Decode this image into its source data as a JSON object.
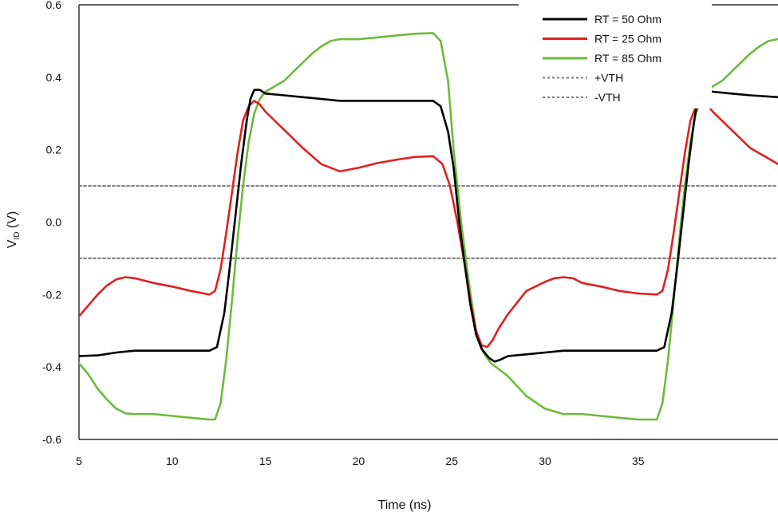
{
  "chart_data": {
    "type": "line",
    "title": "",
    "xlabel": "Time (ns)",
    "ylabel": "V",
    "ylabel_sub": "ID",
    "ylabel_unit": " (V)",
    "xlim": [
      5,
      42.5
    ],
    "ylim": [
      -0.6,
      0.6
    ],
    "x_ticks": [
      5,
      10,
      15,
      20,
      25,
      30,
      35
    ],
    "x_tick_labels": [
      "5",
      "10",
      "15",
      "20",
      "25",
      "30",
      "35"
    ],
    "y_ticks": [
      0.6,
      0.4,
      0.2,
      0.0,
      -0.2,
      -0.4,
      -0.6
    ],
    "y_tick_labels": [
      "0.6",
      "0.4",
      "0.2",
      "0.0",
      "-0.2",
      "-0.4",
      "-0.6"
    ],
    "grid": false,
    "legend_position": "top-right",
    "series": [
      {
        "name": "RT = 50 Ohm",
        "color": "#000000",
        "style": "solid",
        "x": [
          5,
          6,
          7,
          8,
          9,
          10,
          11,
          12,
          12.4,
          12.8,
          13.1,
          13.4,
          13.7,
          14,
          14.2,
          14.4,
          14.7,
          15,
          16,
          17,
          18,
          19,
          20,
          21,
          22,
          23,
          24,
          24.4,
          24.8,
          25.1,
          25.4,
          25.7,
          26,
          26.3,
          26.6,
          27,
          27.3,
          27.6,
          28,
          29,
          30,
          31,
          32,
          33,
          34,
          35,
          36,
          36.4,
          36.8,
          37.1,
          37.4,
          37.7,
          38,
          38.2,
          38.4,
          38.7,
          39,
          40,
          41,
          42.5
        ],
        "y": [
          -0.37,
          -0.368,
          -0.36,
          -0.355,
          -0.355,
          -0.355,
          -0.355,
          -0.355,
          -0.345,
          -0.25,
          -0.12,
          0.02,
          0.16,
          0.28,
          0.34,
          0.365,
          0.365,
          0.355,
          0.35,
          0.345,
          0.34,
          0.335,
          0.335,
          0.335,
          0.335,
          0.335,
          0.335,
          0.32,
          0.25,
          0.15,
          0.0,
          -0.12,
          -0.23,
          -0.31,
          -0.35,
          -0.375,
          -0.385,
          -0.38,
          -0.37,
          -0.365,
          -0.36,
          -0.355,
          -0.355,
          -0.355,
          -0.355,
          -0.355,
          -0.355,
          -0.345,
          -0.25,
          -0.12,
          0.02,
          0.16,
          0.28,
          0.34,
          0.365,
          0.365,
          0.36,
          0.355,
          0.35,
          0.345
        ]
      },
      {
        "name": "RT = 25 Ohm",
        "color": "#e02020",
        "style": "solid",
        "x": [
          5,
          5.5,
          6,
          6.5,
          7,
          7.5,
          8,
          9,
          10,
          11,
          12,
          12.3,
          12.6,
          12.9,
          13.2,
          13.5,
          13.8,
          14.1,
          14.4,
          14.7,
          15,
          16,
          17,
          18,
          19,
          20,
          21,
          22,
          23,
          24,
          24.5,
          24.9,
          25.3,
          25.7,
          26,
          26.3,
          26.6,
          26.9,
          27.2,
          27.5,
          28,
          29,
          30,
          30.5,
          31,
          31.5,
          32,
          33,
          34,
          35,
          36,
          36.3,
          36.6,
          36.9,
          37.2,
          37.5,
          37.8,
          38.1,
          38.4,
          38.7,
          39,
          40,
          41,
          42.5
        ],
        "y": [
          -0.26,
          -0.23,
          -0.2,
          -0.175,
          -0.158,
          -0.152,
          -0.155,
          -0.168,
          -0.178,
          -0.19,
          -0.2,
          -0.19,
          -0.13,
          -0.03,
          0.08,
          0.19,
          0.28,
          0.32,
          0.335,
          0.325,
          0.305,
          0.255,
          0.205,
          0.16,
          0.14,
          0.15,
          0.163,
          0.172,
          0.18,
          0.182,
          0.16,
          0.1,
          0.0,
          -0.12,
          -0.22,
          -0.3,
          -0.34,
          -0.345,
          -0.325,
          -0.295,
          -0.255,
          -0.19,
          -0.165,
          -0.155,
          -0.152,
          -0.155,
          -0.168,
          -0.178,
          -0.19,
          -0.197,
          -0.2,
          -0.19,
          -0.13,
          -0.03,
          0.08,
          0.19,
          0.28,
          0.32,
          0.335,
          0.325,
          0.305,
          0.255,
          0.205,
          0.16
        ]
      },
      {
        "name": "RT = 85 Ohm",
        "color": "#6cbb3c",
        "style": "solid",
        "x": [
          5,
          5.5,
          6,
          6.5,
          7,
          7.5,
          8,
          9,
          10,
          11,
          12,
          12.3,
          12.6,
          12.9,
          13.2,
          13.5,
          13.8,
          14.1,
          14.4,
          14.7,
          15,
          15.5,
          16,
          16.5,
          17,
          17.5,
          18,
          18.5,
          19,
          20,
          21,
          22,
          23,
          24,
          24.4,
          24.8,
          25.1,
          25.5,
          25.9,
          26.3,
          26.7,
          27.1,
          27.5,
          28,
          29,
          30,
          31,
          32,
          33,
          34,
          35,
          36,
          36.3,
          36.6,
          36.9,
          37.2,
          37.5,
          37.8,
          38.1,
          38.4,
          38.7,
          39,
          39.5,
          40,
          40.5,
          41,
          41.5,
          42,
          42.5
        ],
        "y": [
          -0.39,
          -0.42,
          -0.46,
          -0.49,
          -0.515,
          -0.528,
          -0.53,
          -0.53,
          -0.535,
          -0.54,
          -0.545,
          -0.545,
          -0.5,
          -0.38,
          -0.22,
          -0.05,
          0.1,
          0.22,
          0.3,
          0.34,
          0.36,
          0.375,
          0.39,
          0.415,
          0.44,
          0.465,
          0.485,
          0.5,
          0.505,
          0.505,
          0.51,
          0.515,
          0.52,
          0.522,
          0.5,
          0.39,
          0.2,
          0.0,
          -0.16,
          -0.3,
          -0.36,
          -0.39,
          -0.405,
          -0.425,
          -0.48,
          -0.515,
          -0.53,
          -0.53,
          -0.535,
          -0.54,
          -0.545,
          -0.545,
          -0.5,
          -0.38,
          -0.22,
          -0.05,
          0.1,
          0.22,
          0.3,
          0.34,
          0.36,
          0.375,
          0.39,
          0.415,
          0.44,
          0.465,
          0.485,
          0.5,
          0.505
        ]
      },
      {
        "name": "+VTH",
        "color": "#7a7a7a",
        "style": "dotted",
        "x": [
          5,
          42.5
        ],
        "y": [
          0.1,
          0.1
        ]
      },
      {
        "name": "-VTH",
        "color": "#7a7a7a",
        "style": "dotted",
        "x": [
          5,
          42.5
        ],
        "y": [
          -0.1,
          -0.1
        ]
      }
    ]
  }
}
